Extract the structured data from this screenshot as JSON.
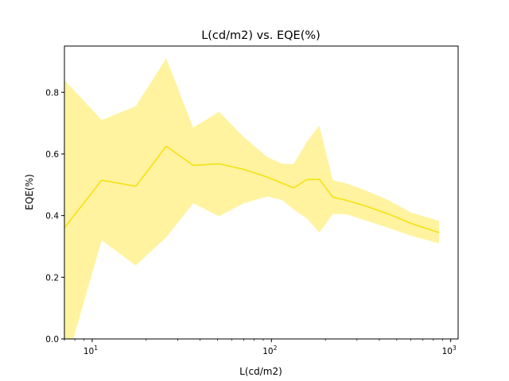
{
  "chart_data": {
    "type": "line",
    "title": "L(cd/m2) vs. EQE(%)",
    "xlabel": "L(cd/m2)",
    "ylabel": "EQE(%)",
    "xscale": "log",
    "xlim": [
      7,
      1100
    ],
    "ylim": [
      0.0,
      0.95
    ],
    "grid": false,
    "x_ticks": [
      {
        "value": 10,
        "label": "10",
        "exp": "1"
      },
      {
        "value": 100,
        "label": "10",
        "exp": "2"
      },
      {
        "value": 1000,
        "label": "10",
        "exp": "3"
      }
    ],
    "y_ticks": [
      {
        "value": 0.0,
        "label": "0.0"
      },
      {
        "value": 0.2,
        "label": "0.2"
      },
      {
        "value": 0.4,
        "label": "0.4"
      },
      {
        "value": 0.6,
        "label": "0.6"
      },
      {
        "value": 0.8,
        "label": "0.8"
      }
    ],
    "series": [
      {
        "line_color": "#f5e10f",
        "band_color": "#fff3a0",
        "x": [
          7,
          11.3,
          17.5,
          25.9,
          36.6,
          51,
          70,
          95,
          115,
          133,
          158,
          185,
          220,
          260,
          340,
          450,
          600,
          860
        ],
        "y": [
          0.36,
          0.515,
          0.495,
          0.625,
          0.563,
          0.568,
          0.55,
          0.525,
          0.505,
          0.49,
          0.517,
          0.518,
          0.46,
          0.45,
          0.43,
          0.405,
          0.375,
          0.345
        ],
        "lower": [
          -0.1,
          0.32,
          0.238,
          0.33,
          0.44,
          0.398,
          0.44,
          0.462,
          0.45,
          0.42,
          0.39,
          0.345,
          0.405,
          0.405,
          0.383,
          0.36,
          0.335,
          0.31
        ],
        "upper": [
          0.84,
          0.71,
          0.755,
          0.91,
          0.685,
          0.737,
          0.655,
          0.59,
          0.568,
          0.567,
          0.64,
          0.692,
          0.515,
          0.505,
          0.48,
          0.45,
          0.41,
          0.383
        ]
      }
    ]
  }
}
